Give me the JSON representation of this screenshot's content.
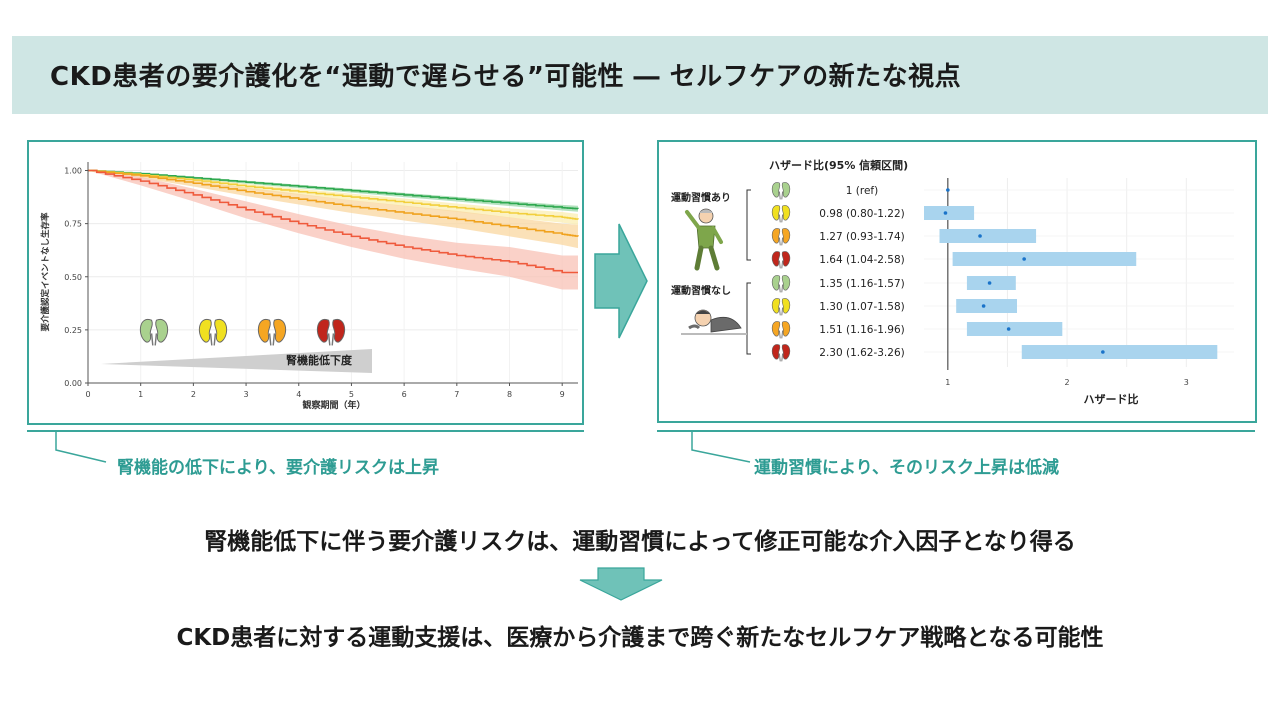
{
  "header": {
    "title": "CKD患者の要介護化を“運動で遅らせる”可能性 ― セルフケアの新たな視点"
  },
  "km_panel": {
    "ylabel": "要介護認定イベントなし生存率",
    "xlabel": "観察期間（年）",
    "decline_label": "腎機能低下度",
    "caption": "腎機能の低下により、要介護リスクは上昇"
  },
  "forest_panel": {
    "header": "ハザード比(95% 信頼区間)",
    "xlabel": "ハザード比",
    "group_with": "運動習慣あり",
    "group_without": "運動習慣なし",
    "caption": "運動習慣により、そのリスク上昇は低減"
  },
  "conclusion": {
    "line1": "腎機能低下に伴う要介護リスクは、運動習慣によって修正可能な介入因子となり得る",
    "line2": "CKD患者に対する運動支援は、医療から介護まで跨ぐ新たなセルフケア戦略となる可能性"
  },
  "colors": {
    "accent": "#3aa69b",
    "banner": "#cfe6e4",
    "kidney": [
      "#a9d18e",
      "#f0e020",
      "#f5a623",
      "#c0261c"
    ]
  },
  "chart_data": [
    {
      "type": "line",
      "xlabel": "観察期間（年）",
      "ylabel": "要介護認定イベントなし生存率",
      "xlim": [
        0,
        9.3
      ],
      "ylim": [
        0,
        1.0
      ],
      "x_ticks": [
        0,
        1,
        2,
        3,
        4,
        5,
        6,
        7,
        8,
        9
      ],
      "y_ticks": [
        "0.00",
        "0.25",
        "0.50",
        "0.75",
        "1.00"
      ],
      "grid": true,
      "series": [
        {
          "color": "#2ea84f",
          "band": "#9ad7a8",
          "x": [
            0,
            1,
            2,
            3,
            4,
            5,
            6,
            7,
            8,
            9,
            9.3
          ],
          "y": [
            1.0,
            0.985,
            0.965,
            0.945,
            0.925,
            0.905,
            0.885,
            0.865,
            0.845,
            0.825,
            0.82
          ],
          "lo": [
            1.0,
            0.98,
            0.959,
            0.938,
            0.917,
            0.896,
            0.875,
            0.854,
            0.833,
            0.812,
            0.806
          ],
          "hi": [
            1.0,
            0.99,
            0.971,
            0.952,
            0.933,
            0.914,
            0.895,
            0.876,
            0.857,
            0.838,
            0.834
          ]
        },
        {
          "color": "#f2cf3c",
          "band": "#fbedb1",
          "x": [
            0,
            1,
            2,
            3,
            4,
            5,
            6,
            7,
            8,
            9,
            9.3
          ],
          "y": [
            1.0,
            0.98,
            0.955,
            0.925,
            0.9,
            0.875,
            0.85,
            0.825,
            0.8,
            0.78,
            0.77
          ],
          "lo": [
            1.0,
            0.972,
            0.945,
            0.913,
            0.886,
            0.859,
            0.832,
            0.805,
            0.778,
            0.755,
            0.744
          ],
          "hi": [
            1.0,
            0.988,
            0.965,
            0.937,
            0.914,
            0.891,
            0.868,
            0.845,
            0.822,
            0.805,
            0.796
          ]
        },
        {
          "color": "#f0a21e",
          "band": "#fad7a0",
          "x": [
            0,
            1,
            2,
            3,
            4,
            5,
            6,
            7,
            8,
            9,
            9.3
          ],
          "y": [
            1.0,
            0.975,
            0.94,
            0.9,
            0.865,
            0.83,
            0.8,
            0.77,
            0.735,
            0.7,
            0.69
          ],
          "lo": [
            1.0,
            0.965,
            0.925,
            0.88,
            0.84,
            0.8,
            0.765,
            0.73,
            0.69,
            0.65,
            0.635
          ],
          "hi": [
            1.0,
            0.985,
            0.955,
            0.92,
            0.89,
            0.86,
            0.835,
            0.81,
            0.78,
            0.75,
            0.745
          ]
        },
        {
          "color": "#ef5a3c",
          "band": "#f8c2b6",
          "x": [
            0,
            1,
            2,
            3,
            4,
            5,
            6,
            7,
            8,
            9,
            9.3
          ],
          "y": [
            1.0,
            0.95,
            0.885,
            0.815,
            0.75,
            0.69,
            0.64,
            0.6,
            0.57,
            0.52,
            0.52
          ],
          "lo": [
            1.0,
            0.93,
            0.855,
            0.775,
            0.705,
            0.64,
            0.585,
            0.54,
            0.5,
            0.44,
            0.44
          ],
          "hi": [
            1.0,
            0.97,
            0.915,
            0.855,
            0.795,
            0.74,
            0.695,
            0.66,
            0.64,
            0.6,
            0.6
          ]
        }
      ]
    },
    {
      "type": "forest",
      "title": "ハザード比(95% 信頼区間)",
      "xlabel": "ハザード比",
      "xlim": [
        0.8,
        3.4
      ],
      "x_ticks": [
        1,
        2,
        3
      ],
      "ref_line": 1,
      "rows": [
        {
          "group": "運動習慣あり",
          "label": "1 (ref)",
          "hr": 1.0,
          "lo": 1.0,
          "hi": 1.0,
          "kidney": 0
        },
        {
          "group": "運動習慣あり",
          "label": "0.98 (0.80-1.22)",
          "hr": 0.98,
          "lo": 0.8,
          "hi": 1.22,
          "kidney": 1
        },
        {
          "group": "運動習慣あり",
          "label": "1.27 (0.93-1.74)",
          "hr": 1.27,
          "lo": 0.93,
          "hi": 1.74,
          "kidney": 2
        },
        {
          "group": "運動習慣あり",
          "label": "1.64 (1.04-2.58)",
          "hr": 1.64,
          "lo": 1.04,
          "hi": 2.58,
          "kidney": 3
        },
        {
          "group": "運動習慣なし",
          "label": "1.35 (1.16-1.57)",
          "hr": 1.35,
          "lo": 1.16,
          "hi": 1.57,
          "kidney": 0
        },
        {
          "group": "運動習慣なし",
          "label": "1.30 (1.07-1.58)",
          "hr": 1.3,
          "lo": 1.07,
          "hi": 1.58,
          "kidney": 1
        },
        {
          "group": "運動習慣なし",
          "label": "1.51 (1.16-1.96)",
          "hr": 1.51,
          "lo": 1.16,
          "hi": 1.96,
          "kidney": 2
        },
        {
          "group": "運動習慣なし",
          "label": "2.30 (1.62-3.26)",
          "hr": 2.3,
          "lo": 1.62,
          "hi": 3.26,
          "kidney": 3
        }
      ]
    }
  ]
}
